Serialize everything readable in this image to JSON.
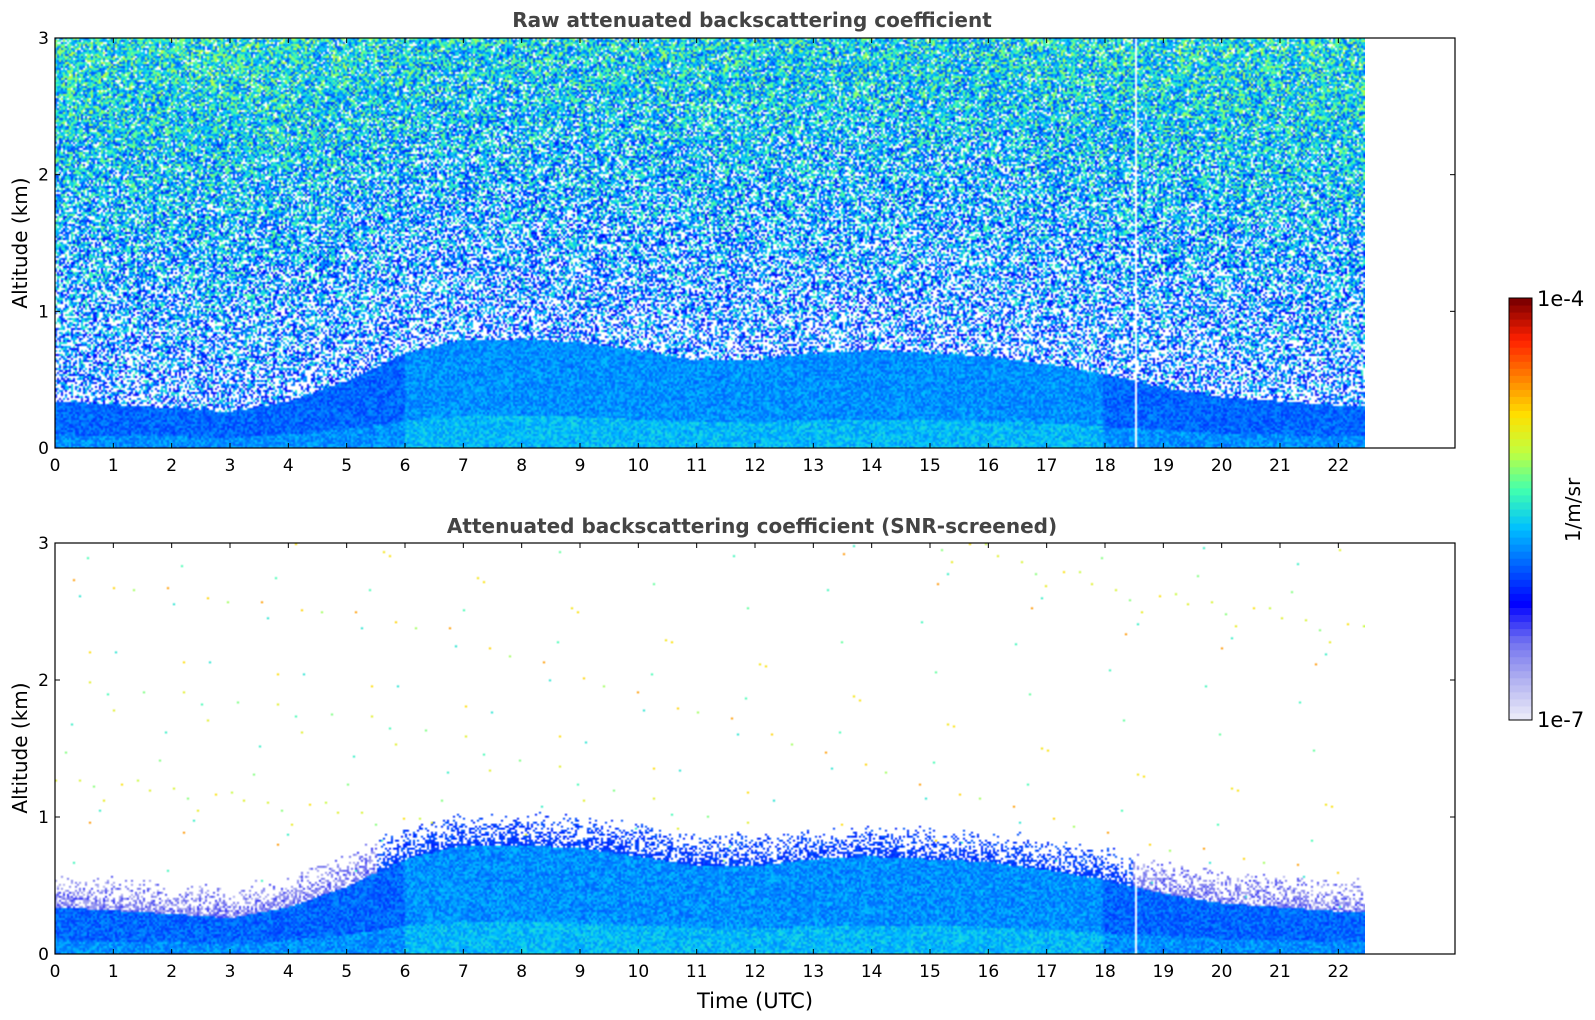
{
  "chart_data": [
    {
      "type": "heatmap",
      "title": "Raw attenuated backscattering coefficient",
      "xlabel": "",
      "ylabel": "Altitude (km)",
      "xlim": [
        0,
        24
      ],
      "ylim": [
        0,
        3
      ],
      "x_ticks": [
        "0",
        "1",
        "2",
        "3",
        "4",
        "5",
        "6",
        "7",
        "8",
        "9",
        "10",
        "11",
        "12",
        "13",
        "14",
        "15",
        "16",
        "17",
        "18",
        "19",
        "20",
        "21",
        "22"
      ],
      "y_ticks": [
        "0",
        "1",
        "2",
        "3"
      ],
      "data_end_time": 22.5,
      "data_gap_time": 18.55,
      "boundary_layer_top_km": [
        {
          "t": 0,
          "z": 0.35
        },
        {
          "t": 2,
          "z": 0.3
        },
        {
          "t": 3,
          "z": 0.27
        },
        {
          "t": 4,
          "z": 0.35
        },
        {
          "t": 5,
          "z": 0.5
        },
        {
          "t": 6,
          "z": 0.7
        },
        {
          "t": 7,
          "z": 0.8
        },
        {
          "t": 8,
          "z": 0.8
        },
        {
          "t": 9,
          "z": 0.78
        },
        {
          "t": 10,
          "z": 0.72
        },
        {
          "t": 11,
          "z": 0.65
        },
        {
          "t": 12,
          "z": 0.65
        },
        {
          "t": 13,
          "z": 0.7
        },
        {
          "t": 14,
          "z": 0.72
        },
        {
          "t": 15,
          "z": 0.7
        },
        {
          "t": 16,
          "z": 0.68
        },
        {
          "t": 17,
          "z": 0.62
        },
        {
          "t": 18,
          "z": 0.55
        },
        {
          "t": 19,
          "z": 0.45
        },
        {
          "t": 20,
          "z": 0.38
        },
        {
          "t": 21,
          "z": 0.35
        },
        {
          "t": 22,
          "z": 0.32
        }
      ]
    },
    {
      "type": "heatmap",
      "title": "Attenuated backscattering coefficient (SNR-screened)",
      "xlabel": "Time (UTC)",
      "ylabel": "Altitude (km)",
      "xlim": [
        0,
        24
      ],
      "ylim": [
        0,
        3
      ],
      "x_ticks": [
        "0",
        "1",
        "2",
        "3",
        "4",
        "5",
        "6",
        "7",
        "8",
        "9",
        "10",
        "11",
        "12",
        "13",
        "14",
        "15",
        "16",
        "17",
        "18",
        "19",
        "20",
        "21",
        "22"
      ],
      "y_ticks": [
        "0",
        "1",
        "2",
        "3"
      ],
      "data_end_time": 22.5,
      "data_gap_time": 18.55
    }
  ],
  "colorbar": {
    "label": "1/m/sr",
    "max_label": "1e-4",
    "min_label": "1e-7",
    "colors": [
      "#e8e8f8",
      "#b0b0f0",
      "#7070f0",
      "#0000ff",
      "#0060ff",
      "#00c0ff",
      "#40ffb0",
      "#c0ff40",
      "#ffe000",
      "#ff8000",
      "#ff2000",
      "#800000"
    ]
  }
}
